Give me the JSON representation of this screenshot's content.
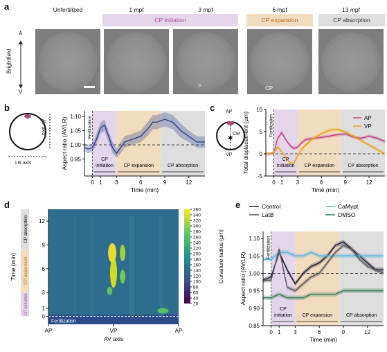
{
  "panel_letters": {
    "a": "a",
    "b": "b",
    "c": "c",
    "d": "d",
    "e": "e"
  },
  "panel_a": {
    "row_label": "Brightfield",
    "axis_top": "A",
    "axis_bottom": "V",
    "frames": [
      "Unfertilized",
      "1 mpf",
      "3 mpf",
      "6 mpf",
      "13 mpf"
    ],
    "phase_labels": {
      "initiation": "CP initiation",
      "expansion": "CP expansion",
      "absorption": "CP absorption"
    },
    "cp_mark": "CP",
    "colors": {
      "initiation": "#e4d6ea",
      "expansion": "#f1dcc0",
      "absorption": "#dedede"
    }
  },
  "panel_b": {
    "schematic": {
      "av_axis": "AV axis",
      "lr_axis": "LR axis"
    },
    "chart_data": {
      "type": "line",
      "ylabel": "Aspect ratio (AV/LR)",
      "xlabel": "Time (min)",
      "xlim": [
        -1,
        14
      ],
      "ylim": [
        0.89,
        1.12
      ],
      "xticks": [
        0,
        1,
        3,
        6,
        9,
        12
      ],
      "yticks": [
        0.95,
        1.0,
        1.05,
        1.1
      ],
      "x": [
        -1,
        -0.5,
        0,
        0.5,
        1,
        1.5,
        2,
        2.5,
        3,
        3.5,
        4,
        5,
        6,
        7,
        7.5,
        8,
        9,
        10,
        11,
        12,
        13,
        14
      ],
      "values": [
        0.99,
        0.985,
        0.99,
        1.02,
        1.06,
        1.07,
        1.03,
        0.99,
        0.97,
        0.99,
        1.01,
        1.02,
        1.03,
        1.06,
        1.08,
        1.08,
        1.09,
        1.08,
        1.05,
        1.03,
        1.01,
        1.01
      ],
      "band": [
        0.015,
        0.015,
        0.015,
        0.02,
        0.02,
        0.02,
        0.02,
        0.02,
        0.015,
        0.02,
        0.02,
        0.02,
        0.02,
        0.025,
        0.025,
        0.025,
        0.025,
        0.025,
        0.025,
        0.02,
        0.02,
        0.02
      ],
      "ref_line": 1.0,
      "annotations": {
        "fertilization": "Fertilization",
        "initiation": "CP initiation",
        "expansion": "CP expansion",
        "absorption": "CP absorption"
      }
    }
  },
  "panel_c": {
    "schematic": {
      "ap": "AP",
      "vp": "VP",
      "cm": "CM"
    },
    "chart_data": {
      "type": "line",
      "ylabel": "Total displacement (µm)",
      "xlabel": "Time (min)",
      "xlim": [
        -1,
        14
      ],
      "ylim": [
        -5,
        10
      ],
      "xticks": [
        0,
        1,
        3,
        6,
        9,
        12
      ],
      "yticks": [
        -5,
        0,
        5,
        10
      ],
      "x": [
        -1,
        -0.5,
        0,
        0.5,
        1,
        1.5,
        2,
        2.5,
        3,
        3.5,
        4,
        5,
        6,
        7,
        8,
        9,
        10,
        11,
        12,
        13,
        14
      ],
      "series": [
        {
          "name": "AP",
          "color": "#c0408a",
          "values": [
            0,
            0,
            0.2,
            3.5,
            4.8,
            3.2,
            2.0,
            1.2,
            1.5,
            2.5,
            3.2,
            3.5,
            3.7,
            4.0,
            4.3,
            4.5,
            3.8,
            3.5,
            4.0,
            3.5,
            2.8
          ]
        },
        {
          "name": "VP",
          "color": "#e8a317",
          "values": [
            0,
            0,
            0.3,
            1.5,
            0.5,
            -0.8,
            -2.0,
            -2.3,
            -0.5,
            1.0,
            2.0,
            3.5,
            4.5,
            5.3,
            5.5,
            5.0,
            4.0,
            3.0,
            2.0,
            1.0,
            0.0
          ]
        }
      ],
      "ref_line": 0,
      "annotations": {
        "fertilization": "Fertilization",
        "initiation": "CP initiation",
        "expansion": "CP expansion",
        "absorption": "CP absorption"
      }
    }
  },
  "panel_d": {
    "chart_data": {
      "type": "heatmap",
      "ylabel": "Time (min)",
      "xlabel": "AV axis",
      "xticks": [
        "AP",
        "VP",
        "AP"
      ],
      "yticks": [
        0,
        1,
        3,
        6,
        9,
        12
      ],
      "ylim": [
        -1,
        13.5
      ],
      "colorbar_label": "Curvature radius (µm)",
      "colorbar_ticks": [
        20,
        40,
        60,
        80,
        100,
        120,
        140,
        160,
        180,
        200,
        220,
        240,
        260,
        280,
        300,
        320,
        340,
        360
      ],
      "annotation": "Fertilization",
      "phase_labels": {
        "initiation": "CP initiation",
        "expansion": "CP expansion",
        "absorption": "CP absorption"
      }
    }
  },
  "panel_e": {
    "chart_data": {
      "type": "line",
      "ylabel": "Aspect ratio (AV/LR)",
      "xlabel": "Time (min)",
      "xlim": [
        -1,
        14
      ],
      "ylim": [
        0.85,
        1.12
      ],
      "xticks": [
        0,
        1,
        3,
        6,
        9,
        12
      ],
      "yticks": [
        0.85,
        0.9,
        0.95,
        1.0,
        1.05,
        1.1
      ],
      "x": [
        -1,
        0,
        1,
        2,
        3,
        4,
        5,
        6,
        7,
        8,
        9,
        10,
        11,
        12,
        13,
        14
      ],
      "series": [
        {
          "name": "Control",
          "color": "#1a1a2e",
          "values": [
            0.98,
            0.99,
            1.06,
            1.01,
            0.97,
            1.0,
            1.02,
            1.03,
            1.05,
            1.08,
            1.09,
            1.07,
            1.05,
            1.03,
            1.01,
            1.01
          ]
        },
        {
          "name": "CaMypt",
          "color": "#5ab4d9",
          "values": [
            1.04,
            1.04,
            1.06,
            1.06,
            1.05,
            1.05,
            1.06,
            1.05,
            1.05,
            1.05,
            1.05,
            1.05,
            1.05,
            1.05,
            1.05,
            1.05
          ]
        },
        {
          "name": "LatB",
          "color": "#555555",
          "values": [
            0.98,
            0.98,
            1.07,
            0.96,
            0.95,
            0.97,
            0.99,
            1.0,
            1.03,
            1.06,
            1.08,
            1.07,
            1.04,
            1.02,
            1.01,
            1.0
          ]
        },
        {
          "name": "DMSO",
          "color": "#3a7a5c",
          "values": [
            0.93,
            0.93,
            0.94,
            0.93,
            0.93,
            0.93,
            0.94,
            0.94,
            0.94,
            0.94,
            0.95,
            0.95,
            0.95,
            0.95,
            0.95,
            0.95
          ]
        }
      ],
      "ref_line": 1.0,
      "annotations": {
        "fertilization": "Fertilization",
        "initiation": "CP initiation",
        "expansion": "CP expansion",
        "absorption": "CP absorption"
      }
    }
  }
}
